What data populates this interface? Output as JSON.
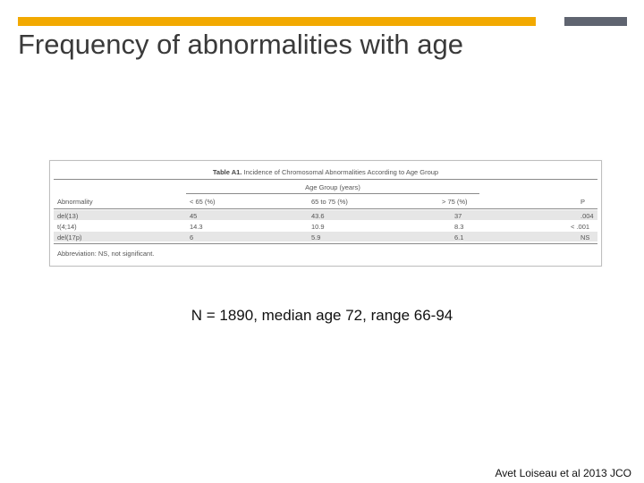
{
  "slide": {
    "title": "Frequency of abnormalities with age",
    "stats_text": "N = 1890, median age 72, range 66-94",
    "citation": "Avet Loiseau et al 2013 JCO",
    "accent_color": "#f2a900",
    "secondary_color": "#5f6470"
  },
  "table": {
    "label": "Table A1.",
    "caption": "Incidence of Chromosomal Abnormalities According to Age Group",
    "group_header": "Age Group (years)",
    "columns": [
      "Abnormality",
      "< 65 (%)",
      "65 to 75 (%)",
      "> 75 (%)",
      "P"
    ],
    "rows": [
      [
        "del(13)",
        "45",
        "43.6",
        "37",
        ".004"
      ],
      [
        "t(4;14)",
        "14.3",
        "10.9",
        "8.3",
        "< .001"
      ],
      [
        "del(17p)",
        "6",
        "5.9",
        "6.1",
        "NS"
      ]
    ],
    "footnote": "Abbreviation: NS, not significant."
  }
}
